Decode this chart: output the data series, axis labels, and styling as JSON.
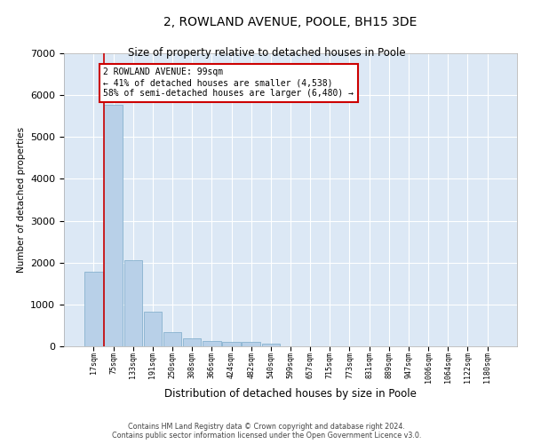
{
  "title": "2, ROWLAND AVENUE, POOLE, BH15 3DE",
  "subtitle": "Size of property relative to detached houses in Poole",
  "xlabel": "Distribution of detached houses by size in Poole",
  "ylabel": "Number of detached properties",
  "bar_color": "#b8d0e8",
  "bar_edge_color": "#7aaac8",
  "background_color": "#dce8f5",
  "grid_color": "#ffffff",
  "categories": [
    "17sqm",
    "75sqm",
    "133sqm",
    "191sqm",
    "250sqm",
    "308sqm",
    "366sqm",
    "424sqm",
    "482sqm",
    "540sqm",
    "599sqm",
    "657sqm",
    "715sqm",
    "773sqm",
    "831sqm",
    "889sqm",
    "947sqm",
    "1006sqm",
    "1064sqm",
    "1122sqm",
    "1180sqm"
  ],
  "values": [
    1780,
    5780,
    2060,
    820,
    340,
    195,
    120,
    110,
    100,
    70,
    0,
    0,
    0,
    0,
    0,
    0,
    0,
    0,
    0,
    0,
    0
  ],
  "ylim": [
    0,
    7000
  ],
  "yticks": [
    0,
    1000,
    2000,
    3000,
    4000,
    5000,
    6000,
    7000
  ],
  "property_label": "2 ROWLAND AVENUE: 99sqm",
  "pct_smaller": "41% of detached houses are smaller (4,538)",
  "pct_larger": "58% of semi-detached houses are larger (6,480)",
  "vline_bar_index": 1,
  "annotation_box_color": "#cc0000",
  "footer1": "Contains HM Land Registry data © Crown copyright and database right 2024.",
  "footer2": "Contains public sector information licensed under the Open Government Licence v3.0."
}
